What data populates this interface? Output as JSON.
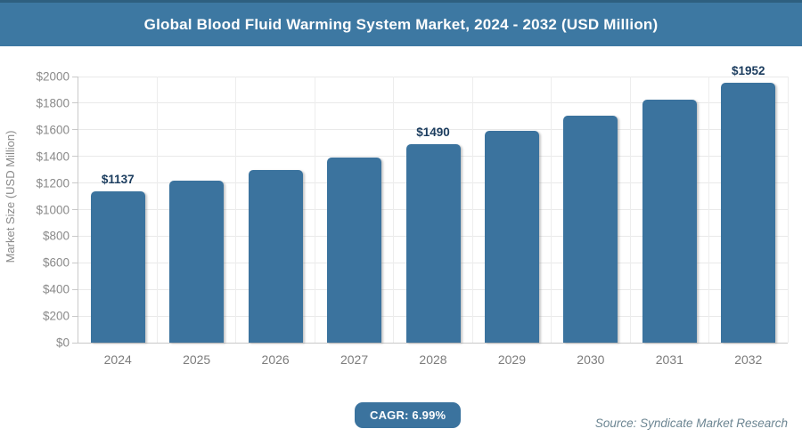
{
  "header": {
    "title": "Global Blood Fluid Warming System Market, 2024 - 2032 (USD Million)"
  },
  "chart_data": {
    "type": "bar",
    "title": "Global Blood Fluid Warming System Market, 2024 - 2032 (USD Million)",
    "categories": [
      "2024",
      "2025",
      "2026",
      "2027",
      "2028",
      "2029",
      "2030",
      "2031",
      "2032"
    ],
    "values": [
      1137,
      1216,
      1301,
      1392,
      1490,
      1594,
      1705,
      1824,
      1952
    ],
    "value_labels": [
      {
        "index": 0,
        "text": "$1137"
      },
      {
        "index": 4,
        "text": "$1490"
      },
      {
        "index": 8,
        "text": "$1952"
      }
    ],
    "xlabel": "",
    "ylabel": "Market Size (USD Million)",
    "ylim": [
      0,
      2000
    ],
    "ytick_step": 200,
    "ytick_prefix": "$",
    "grid": true,
    "legend": "none",
    "bar_color": "#3b739e"
  },
  "footer": {
    "cagr_label": "CAGR: 6.99%",
    "source": "Source: Syndicate Market Research"
  },
  "colors": {
    "header_bg": "#3d78a2",
    "accent_blue": "#3b739e",
    "value_label": "#1b3c5e",
    "axis_text": "#8a8a8a",
    "gridline": "#e9e9e9",
    "source_text": "#6c8592"
  }
}
